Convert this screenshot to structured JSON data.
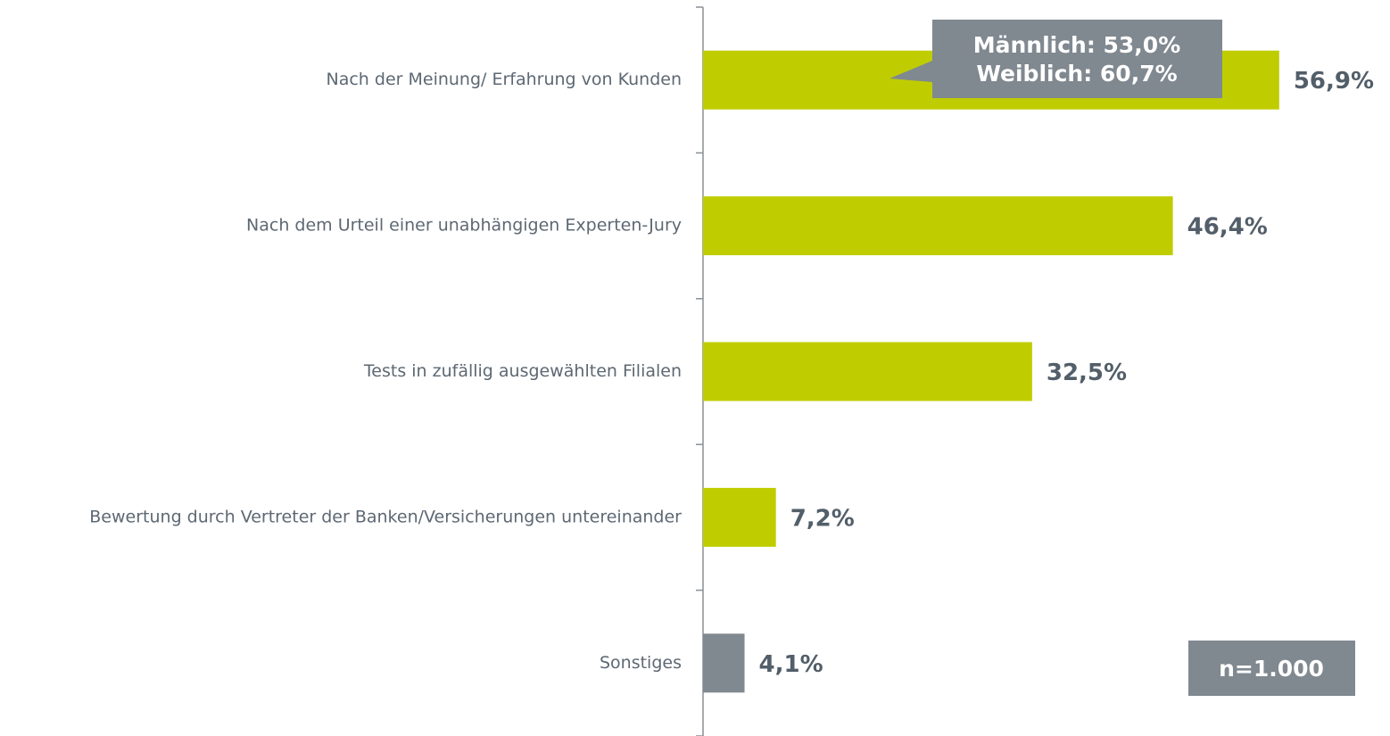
{
  "chart_data": {
    "type": "bar",
    "orientation": "horizontal",
    "categories": [
      "Nach der Meinung/ Erfahrung von Kunden",
      "Nach dem Urteil einer unabhängigen Experten-Jury",
      "Tests in zufällig ausgewählten Filialen",
      "Bewertung durch Vertreter der Banken/Versicherungen untereinander",
      "Sonstiges"
    ],
    "values": [
      56.9,
      46.4,
      32.5,
      7.2,
      4.1
    ],
    "value_labels": [
      "56,9%",
      "46,4%",
      "32,5%",
      "7,2%",
      "4,1%"
    ],
    "colors": [
      "#bfcd00",
      "#bfcd00",
      "#bfcd00",
      "#bfcd00",
      "#808890"
    ],
    "xlim": [
      0,
      60
    ],
    "annotations": [
      "Männlich: 53,0%",
      "Weiblich: 60,7%"
    ],
    "note": "n=1.000"
  }
}
